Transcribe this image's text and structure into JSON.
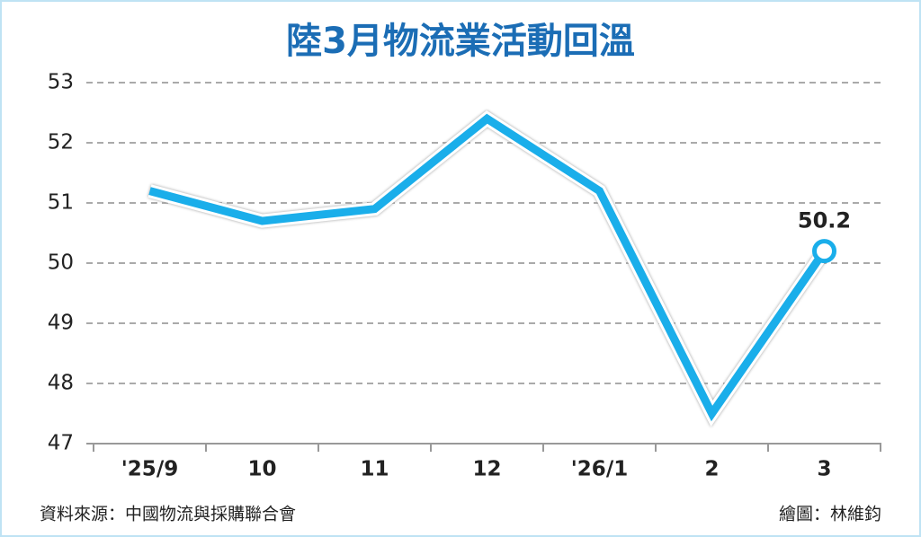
{
  "chart_data": {
    "type": "line",
    "title": "陸3月物流業活動回溫",
    "categories": [
      "'25/9",
      "10",
      "11",
      "12",
      "'26/1",
      "2",
      "3"
    ],
    "values": [
      51.2,
      50.7,
      50.9,
      52.4,
      51.2,
      47.5,
      50.2
    ],
    "color": "#1aaeea",
    "ylim": [
      47,
      53
    ],
    "yticks": [
      47,
      48,
      49,
      50,
      51,
      52,
      53
    ],
    "grid": true,
    "source": "資料來源：中國物流與採購聯合會",
    "credit": "繪圖：林維鈞"
  }
}
